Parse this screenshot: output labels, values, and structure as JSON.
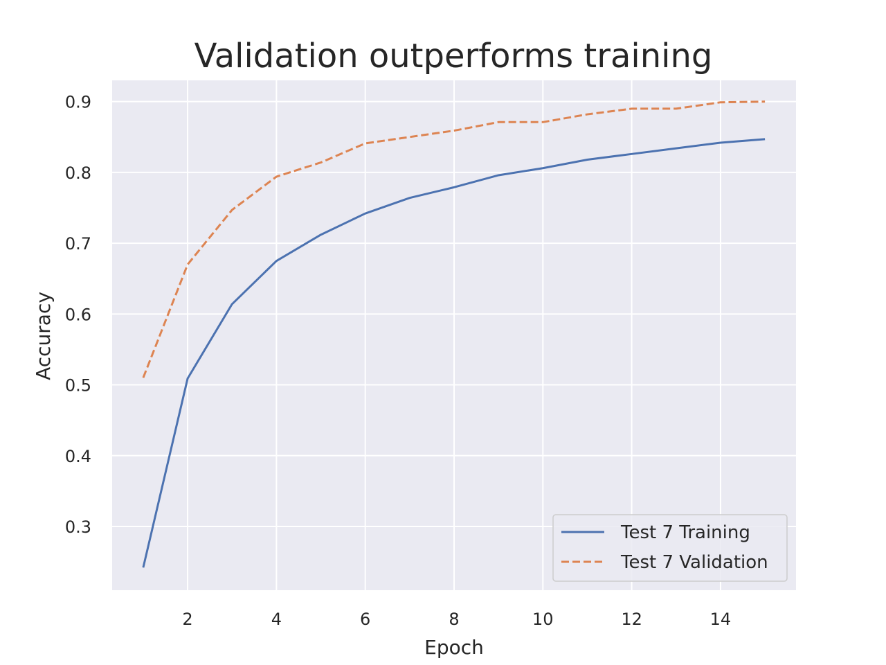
{
  "chart_data": {
    "type": "line",
    "title": "Validation outperforms training",
    "xlabel": "Epoch",
    "ylabel": "Accuracy",
    "xlim": [
      0.3,
      15.7
    ],
    "ylim": [
      0.21,
      0.93
    ],
    "xticks": [
      2,
      4,
      6,
      8,
      10,
      12,
      14
    ],
    "yticks": [
      0.3,
      0.4,
      0.5,
      0.6,
      0.7,
      0.8,
      0.9
    ],
    "x": [
      1,
      2,
      3,
      4,
      5,
      6,
      7,
      8,
      9,
      10,
      11,
      12,
      13,
      14,
      15
    ],
    "grid": true,
    "legend_position": "lower-right",
    "background_color": "#eaeaf2",
    "series": [
      {
        "name": "Test 7 Training",
        "color": "#4c72b0",
        "style": "solid",
        "values": [
          0.242,
          0.509,
          0.614,
          0.675,
          0.712,
          0.742,
          0.764,
          0.779,
          0.796,
          0.806,
          0.818,
          0.826,
          0.834,
          0.842,
          0.847
        ]
      },
      {
        "name": "Test 7 Validation",
        "color": "#dd8452",
        "style": "dashed",
        "values": [
          0.51,
          0.67,
          0.747,
          0.794,
          0.814,
          0.841,
          0.85,
          0.859,
          0.871,
          0.871,
          0.882,
          0.89,
          0.89,
          0.899,
          0.9
        ]
      }
    ]
  }
}
